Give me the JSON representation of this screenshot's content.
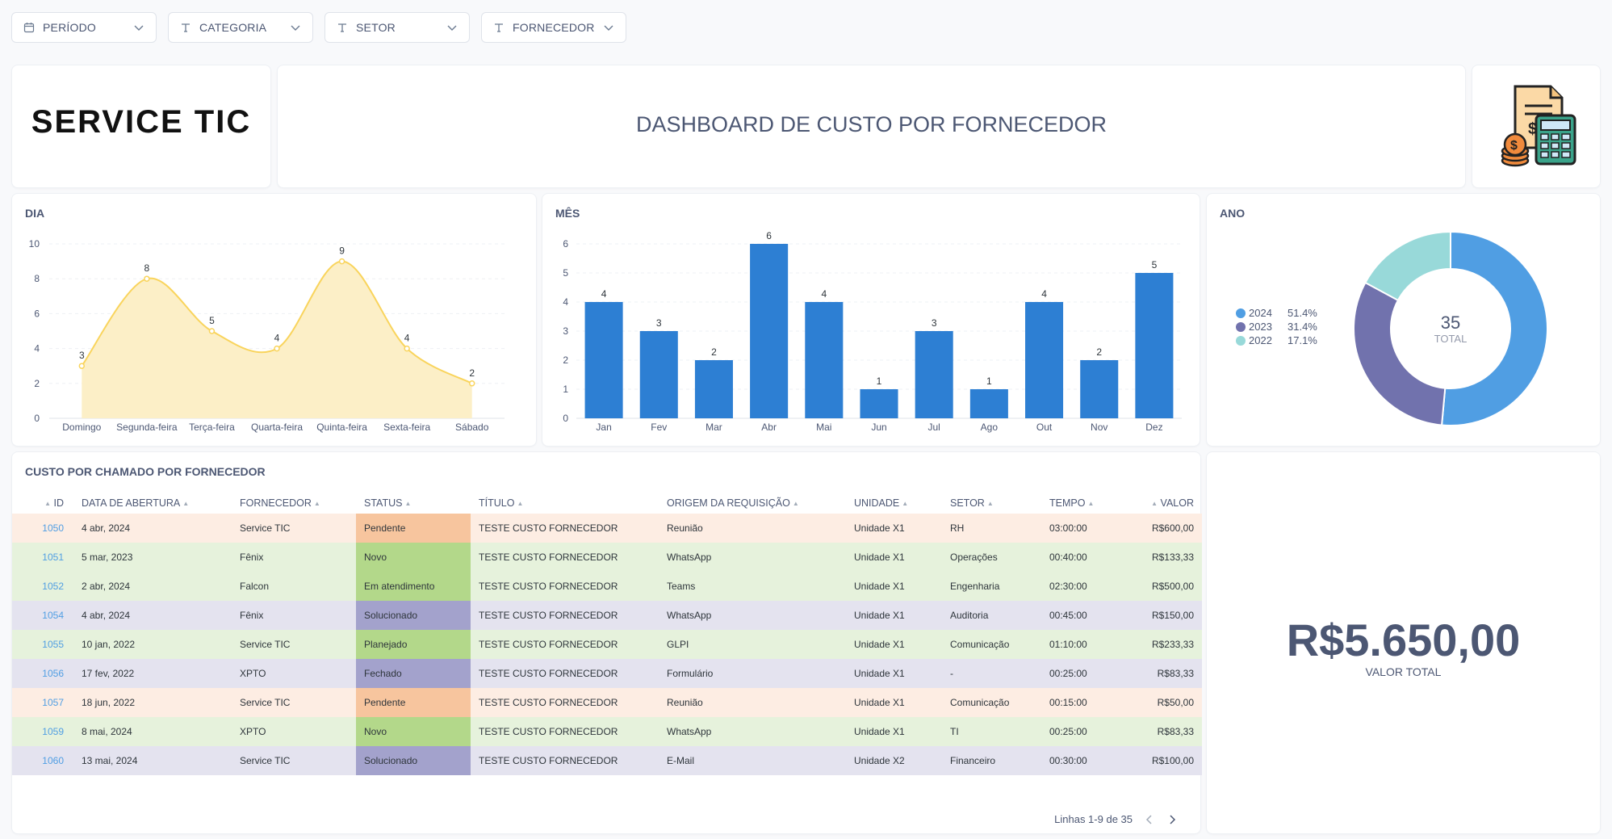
{
  "filters": [
    {
      "label": "PERÍODO",
      "icon": "calendar-icon"
    },
    {
      "label": "CATEGORIA",
      "icon": "text-icon"
    },
    {
      "label": "SETOR",
      "icon": "text-icon"
    },
    {
      "label": "FORNECEDOR",
      "icon": "text-icon"
    }
  ],
  "logo": {
    "text": "SERVICE TIC"
  },
  "header": {
    "title": "DASHBOARD DE CUSTO POR FORNECEDOR"
  },
  "cards": {
    "dia_title": "DIA",
    "mes_title": "MÊS",
    "ano_title": "ANO",
    "table_title": "CUSTO POR CHAMADO POR FORNECEDOR"
  },
  "chart_data": [
    {
      "type": "area",
      "title": "DIA",
      "categories": [
        "Domingo",
        "Segunda-feira",
        "Terça-feira",
        "Quarta-feira",
        "Quinta-feira",
        "Sexta-feira",
        "Sábado"
      ],
      "values": [
        3,
        8,
        5,
        4,
        9,
        4,
        2
      ],
      "ylim": [
        0,
        10
      ],
      "yticks": [
        0,
        2,
        4,
        6,
        8,
        10
      ],
      "color": "#f9d45c",
      "fill": "#fcefc7"
    },
    {
      "type": "bar",
      "title": "MÊS",
      "categories": [
        "Jan",
        "Fev",
        "Mar",
        "Abr",
        "Mai",
        "Jun",
        "Jul",
        "Ago",
        "Out",
        "Nov",
        "Dez"
      ],
      "values": [
        4,
        3,
        2,
        6,
        4,
        1,
        3,
        1,
        4,
        2,
        5
      ],
      "ylim": [
        0,
        6
      ],
      "yticks": [
        0,
        1,
        2,
        3,
        4,
        5,
        6
      ],
      "color": "#2d7fd3"
    },
    {
      "type": "pie",
      "title": "ANO",
      "total": 35,
      "total_label": "TOTAL",
      "slices": [
        {
          "label": "2024",
          "percent": "51.4%",
          "value": 51.4,
          "color": "#509ee3"
        },
        {
          "label": "2023",
          "percent": "31.4%",
          "value": 31.4,
          "color": "#7172ad"
        },
        {
          "label": "2022",
          "percent": "17.1%",
          "value": 17.1,
          "color": "#98d9d9"
        }
      ]
    }
  ],
  "table": {
    "headers": [
      "ID",
      "DATA DE ABERTURA",
      "FORNECEDOR",
      "STATUS",
      "TÍTULO",
      "ORIGEM DA REQUISIÇÃO",
      "UNIDADE",
      "SETOR",
      "TEMPO",
      "VALOR"
    ],
    "rows": [
      {
        "id": "1050",
        "data": "4 abr, 2024",
        "fornecedor": "Service TIC",
        "status": "Pendente",
        "titulo": "TESTE CUSTO FORNECEDOR",
        "origem": "Reunião",
        "unidade": "Unidade X1",
        "setor": "RH",
        "tempo": "03:00:00",
        "valor": "R$600,00",
        "row_color": "#fdede3",
        "status_color": "#f7c59e"
      },
      {
        "id": "1051",
        "data": "5 mar, 2023",
        "fornecedor": "Fênix",
        "status": "Novo",
        "titulo": "TESTE CUSTO FORNECEDOR",
        "origem": "WhatsApp",
        "unidade": "Unidade X1",
        "setor": "Operações",
        "tempo": "00:40:00",
        "valor": "R$133,33",
        "row_color": "#e6f2dc",
        "status_color": "#b3d88a"
      },
      {
        "id": "1052",
        "data": "2 abr, 2024",
        "fornecedor": "Falcon",
        "status": "Em atendimento",
        "titulo": "TESTE CUSTO FORNECEDOR",
        "origem": "Teams",
        "unidade": "Unidade X1",
        "setor": "Engenharia",
        "tempo": "02:30:00",
        "valor": "R$500,00",
        "row_color": "#e6f2dc",
        "status_color": "#b3d88a"
      },
      {
        "id": "1054",
        "data": "4 abr, 2024",
        "fornecedor": "Fênix",
        "status": "Solucionado",
        "titulo": "TESTE CUSTO FORNECEDOR",
        "origem": "WhatsApp",
        "unidade": "Unidade X1",
        "setor": "Auditoria",
        "tempo": "00:45:00",
        "valor": "R$150,00",
        "row_color": "#e4e3ef",
        "status_color": "#a3a2cc"
      },
      {
        "id": "1055",
        "data": "10 jan, 2022",
        "fornecedor": "Service TIC",
        "status": "Planejado",
        "titulo": "TESTE CUSTO FORNECEDOR",
        "origem": "GLPI",
        "unidade": "Unidade X1",
        "setor": "Comunicação",
        "tempo": "01:10:00",
        "valor": "R$233,33",
        "row_color": "#e6f2dc",
        "status_color": "#b3d88a"
      },
      {
        "id": "1056",
        "data": "17 fev, 2022",
        "fornecedor": "XPTO",
        "status": "Fechado",
        "titulo": "TESTE CUSTO FORNECEDOR",
        "origem": "Formulário",
        "unidade": "Unidade X1",
        "setor": "-",
        "tempo": "00:25:00",
        "valor": "R$83,33",
        "row_color": "#e4e3ef",
        "status_color": "#a3a2cc"
      },
      {
        "id": "1057",
        "data": "18 jun, 2022",
        "fornecedor": "Service TIC",
        "status": "Pendente",
        "titulo": "TESTE CUSTO FORNECEDOR",
        "origem": "Reunião",
        "unidade": "Unidade X1",
        "setor": "Comunicação",
        "tempo": "00:15:00",
        "valor": "R$50,00",
        "row_color": "#fdede3",
        "status_color": "#f7c59e"
      },
      {
        "id": "1059",
        "data": "8 mai, 2024",
        "fornecedor": "XPTO",
        "status": "Novo",
        "titulo": "TESTE CUSTO FORNECEDOR",
        "origem": "WhatsApp",
        "unidade": "Unidade X1",
        "setor": "TI",
        "tempo": "00:25:00",
        "valor": "R$83,33",
        "row_color": "#e6f2dc",
        "status_color": "#b3d88a"
      },
      {
        "id": "1060",
        "data": "13 mai, 2024",
        "fornecedor": "Service TIC",
        "status": "Solucionado",
        "titulo": "TESTE CUSTO FORNECEDOR",
        "origem": "E-Mail",
        "unidade": "Unidade X2",
        "setor": "Financeiro",
        "tempo": "00:30:00",
        "valor": "R$100,00",
        "row_color": "#e4e3ef",
        "status_color": "#a3a2cc"
      }
    ],
    "pagination": "Linhas 1-9 de 35"
  },
  "total": {
    "value": "R$5.650,00",
    "label": "VALOR TOTAL"
  }
}
